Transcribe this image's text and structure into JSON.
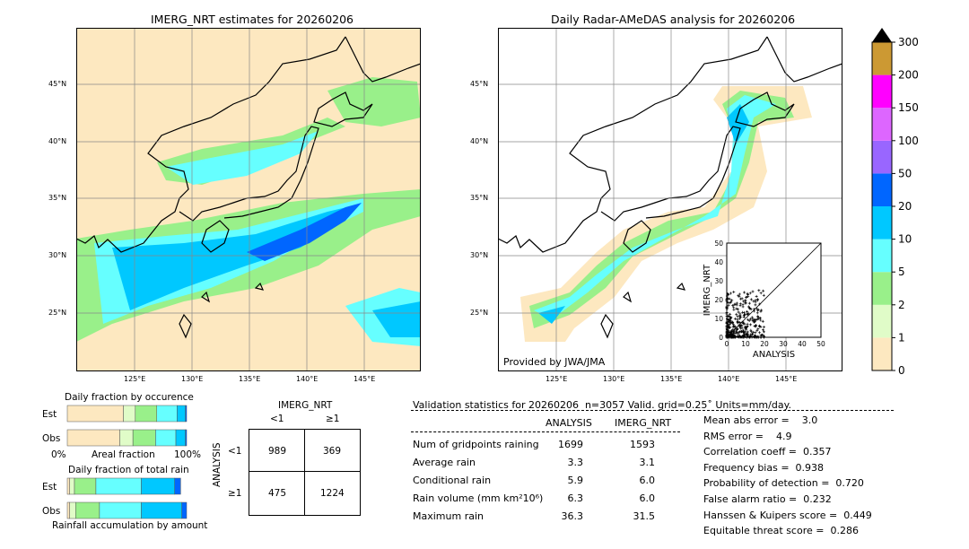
{
  "chart_data": [
    {
      "type": "heatmap",
      "title": "IMERG_NRT estimates for 20260206",
      "lon_ticks": [
        "125°E",
        "130°E",
        "135°E",
        "140°E",
        "145°E"
      ],
      "lat_ticks": [
        "45°N",
        "40°N",
        "35°N",
        "30°N",
        "25°N"
      ]
    },
    {
      "type": "heatmap",
      "title": "Daily Radar-AMeDAS analysis for 20260206",
      "lon_ticks": [
        "125°E",
        "130°E",
        "135°E",
        "140°E",
        "145°E"
      ],
      "lat_ticks": [
        "45°N",
        "40°N",
        "35°N",
        "30°N",
        "25°N"
      ],
      "credit": "Provided by JWA/JMA"
    },
    {
      "type": "scatter",
      "xlabel": "ANALYSIS",
      "ylabel": "IMERG_NRT",
      "xlim": [
        0,
        50
      ],
      "ylim": [
        0,
        50
      ],
      "ticks": [
        "0",
        "10",
        "20",
        "30",
        "40",
        "50"
      ]
    },
    {
      "type": "colorbar",
      "levels": [
        "0",
        "1",
        "2",
        "5",
        "10",
        "20",
        "50",
        "100",
        "150",
        "200",
        "300"
      ],
      "colors": [
        "#fde8c0",
        "#e0fcc8",
        "#99f08a",
        "#66ffff",
        "#00c8ff",
        "#0066ff",
        "#9966ff",
        "#dd66ff",
        "#ff00ff",
        "#cc9933"
      ]
    },
    {
      "type": "bar",
      "title": "Daily fraction by occurence",
      "xlabel": "Areal fraction",
      "xmin_label": "0%",
      "xmax_label": "100%",
      "rows": [
        "Est",
        "Obs"
      ],
      "series": [
        {
          "name": "Est",
          "values": [
            0.47,
            0.1,
            0.18,
            0.17,
            0.07,
            0.01
          ]
        },
        {
          "name": "Obs",
          "values": [
            0.44,
            0.11,
            0.19,
            0.17,
            0.08,
            0.01
          ]
        }
      ]
    },
    {
      "type": "bar",
      "title": "Daily fraction of total rain",
      "xlabel": "Rainfall accumulation by amount",
      "rows": [
        "Est",
        "Obs"
      ],
      "series": [
        {
          "name": "Est",
          "values": [
            0.02,
            0.04,
            0.18,
            0.38,
            0.28,
            0.05
          ]
        },
        {
          "name": "Obs",
          "values": [
            0.02,
            0.05,
            0.2,
            0.35,
            0.34,
            0.04
          ]
        }
      ]
    },
    {
      "type": "table",
      "title": "IMERG_NRT",
      "row_title": "ANALYSIS",
      "col_labels": [
        "<1",
        "≥1"
      ],
      "row_labels": [
        "<1",
        "≥1"
      ],
      "cells": [
        [
          "989",
          "369"
        ],
        [
          "475",
          "1224"
        ]
      ]
    }
  ],
  "stats": {
    "header": "Validation statistics for 20260206  n=3057 Valid. grid=0.25˚ Units=mm/day.",
    "col1": "ANALYSIS",
    "col2": "IMERG_NRT",
    "rows": [
      {
        "label": "Num of gridpoints raining",
        "a": "1699",
        "b": "1593"
      },
      {
        "label": "Average rain",
        "a": "3.3",
        "b": "3.1"
      },
      {
        "label": "Conditional rain",
        "a": "5.9",
        "b": "6.0"
      },
      {
        "label": "Rain volume (mm km²10⁶)",
        "a": "6.3",
        "b": "6.0"
      },
      {
        "label": "Maximum rain",
        "a": "36.3",
        "b": "31.5"
      }
    ],
    "scores": [
      "Mean abs error =    3.0",
      "RMS error =    4.9",
      "Correlation coeff =  0.357",
      "Frequency bias =  0.938",
      "Probability of detection =  0.720",
      "False alarm ratio =  0.232",
      "Hanssen & Kuipers score =  0.449",
      "Equitable threat score =  0.286"
    ]
  }
}
